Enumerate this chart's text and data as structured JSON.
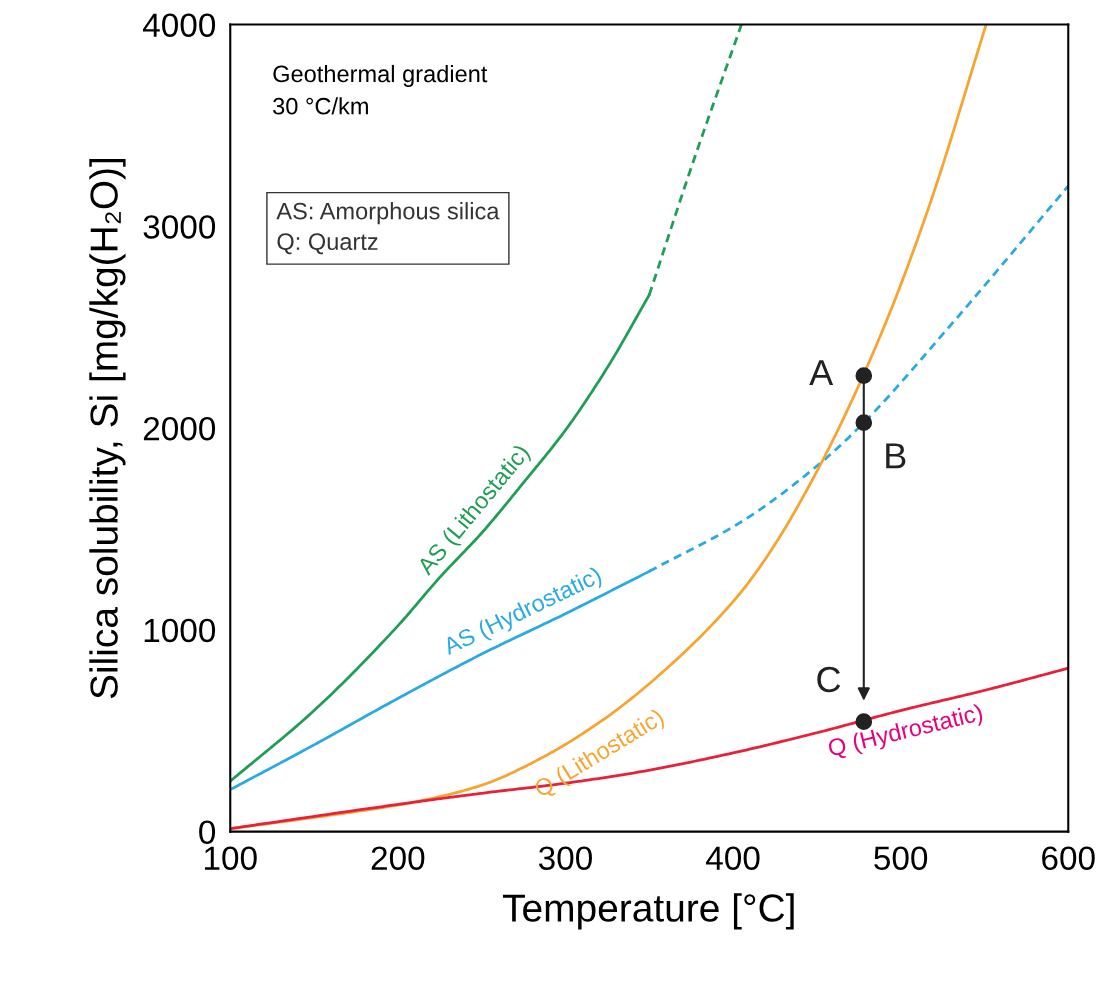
{
  "chart_data": {
    "type": "line",
    "xlabel": "Temperature [°C]",
    "ylabel": "Silica solubility, Si [mg/kg(H₂O)]",
    "xlim": [
      100,
      600
    ],
    "ylim": [
      0,
      4000
    ],
    "xticks": [
      100,
      200,
      300,
      400,
      500,
      600
    ],
    "yticks": [
      0,
      1000,
      2000,
      3000,
      4000
    ],
    "grid": false,
    "series": [
      {
        "name": "AS (Lithostatic)",
        "color": "#1f9e55",
        "line_style": "solid",
        "x": [
          100,
          150,
          200,
          225,
          250,
          275,
          300,
          325,
          350
        ],
        "values": [
          250,
          600,
          1020,
          1260,
          1480,
          1730,
          1990,
          2300,
          2660
        ]
      },
      {
        "color": "#1f9e55",
        "line_style": "dashed",
        "x": [
          350,
          375,
          405
        ],
        "values": [
          2660,
          3290,
          4000
        ]
      },
      {
        "name": "AS (Hydrostatic)",
        "color": "#29abe2",
        "line_style": "solid",
        "x": [
          100,
          150,
          200,
          250,
          300,
          350
        ],
        "values": [
          208,
          430,
          660,
          880,
          1080,
          1290
        ]
      },
      {
        "color": "#29abe2",
        "line_style": "dashed",
        "x": [
          350,
          406,
          453,
          478,
          530,
          600
        ],
        "values": [
          1290,
          1541,
          1833,
          2027,
          2512,
          3200
        ]
      },
      {
        "name": "Q (Lithostatic)",
        "color": "#f7a431",
        "line_style": "solid",
        "x": [
          100,
          150,
          208,
          250,
          285,
          320,
          350,
          400,
          420,
          453,
          490,
          517,
          551
        ],
        "values": [
          15,
          70,
          144,
          230,
          362,
          540,
          733,
          1140,
          1360,
          1833,
          2500,
          3100,
          4000
        ]
      },
      {
        "name": "Q (Hydrostatic)",
        "color": "#e8203a",
        "line_style": "solid",
        "x": [
          100,
          208,
          250,
          300,
          345,
          400,
          450,
          500,
          550,
          600
        ],
        "values": [
          15,
          144,
          190,
          240,
          297,
          390,
          490,
          600,
          700,
          810
        ]
      },
      {
        "type": "scatter",
        "color": "#222222",
        "marker": "circle",
        "x": [
          478,
          478,
          478
        ],
        "values": [
          2260,
          2027,
          545
        ],
        "value_labels": [
          "A",
          "B",
          "C"
        ]
      }
    ],
    "annotations": [
      "Geothermal gradient\n30 °C/km",
      "AS: Amorphous silica\nQ: Quartz"
    ]
  }
}
